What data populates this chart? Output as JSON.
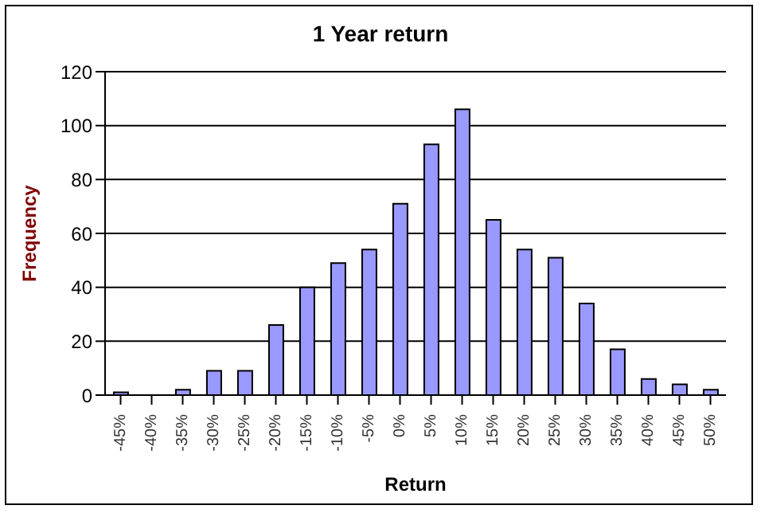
{
  "chart_data": {
    "type": "bar",
    "title": "1 Year return",
    "xlabel": "Return",
    "ylabel": "Frequency",
    "categories": [
      "-45%",
      "-40%",
      "-35%",
      "-30%",
      "-25%",
      "-20%",
      "-15%",
      "-10%",
      "-5%",
      "0%",
      "5%",
      "10%",
      "15%",
      "20%",
      "25%",
      "30%",
      "35%",
      "40%",
      "45%",
      "50%"
    ],
    "values": [
      1,
      0,
      2,
      9,
      9,
      26,
      40,
      49,
      54,
      71,
      93,
      106,
      65,
      54,
      51,
      34,
      17,
      6,
      4,
      2
    ],
    "color": "#9999ff",
    "ylim": [
      0,
      120
    ],
    "yticks": [
      0,
      20,
      40,
      60,
      80,
      100,
      120
    ],
    "grid": "y",
    "legend": false
  }
}
